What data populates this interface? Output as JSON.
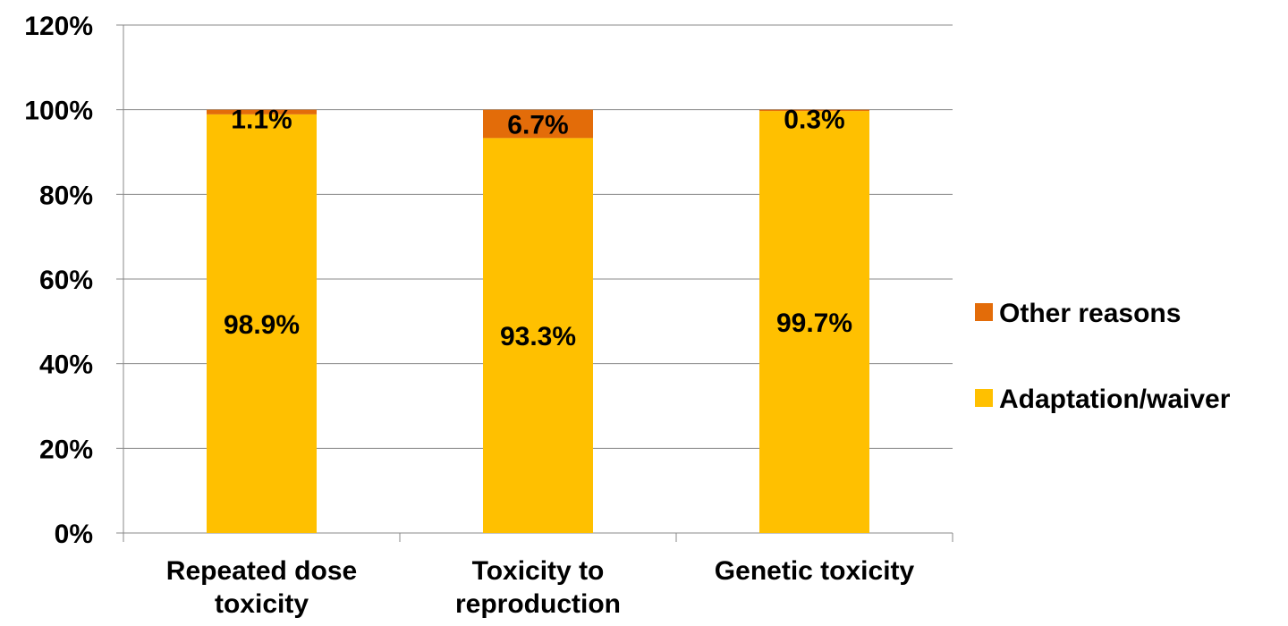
{
  "chart_data": {
    "type": "bar",
    "stacked": true,
    "categories": [
      [
        "Repeated dose",
        "toxicity"
      ],
      [
        "Toxicity to",
        "reproduction"
      ],
      [
        "Genetic toxicity"
      ]
    ],
    "series": [
      {
        "name": "Adaptation/waiver",
        "color": "#FFC000",
        "values": [
          98.9,
          93.3,
          99.7
        ],
        "labels": [
          "98.9%",
          "93.3%",
          "99.7%"
        ]
      },
      {
        "name": "Other reasons",
        "color": "#E36C09",
        "values": [
          1.1,
          6.7,
          0.3
        ],
        "labels": [
          "1.1%",
          "6.7%",
          "0.3%"
        ]
      }
    ],
    "ylim": [
      0,
      120
    ],
    "yticks": [
      0,
      20,
      40,
      60,
      80,
      100,
      120
    ],
    "ytick_labels": [
      "0%",
      "20%",
      "40%",
      "60%",
      "80%",
      "100%",
      "120%"
    ],
    "grid": true,
    "legend_position": "right",
    "legend_order": [
      "Other reasons",
      "Adaptation/waiver"
    ],
    "title": "",
    "xlabel": "",
    "ylabel": ""
  }
}
